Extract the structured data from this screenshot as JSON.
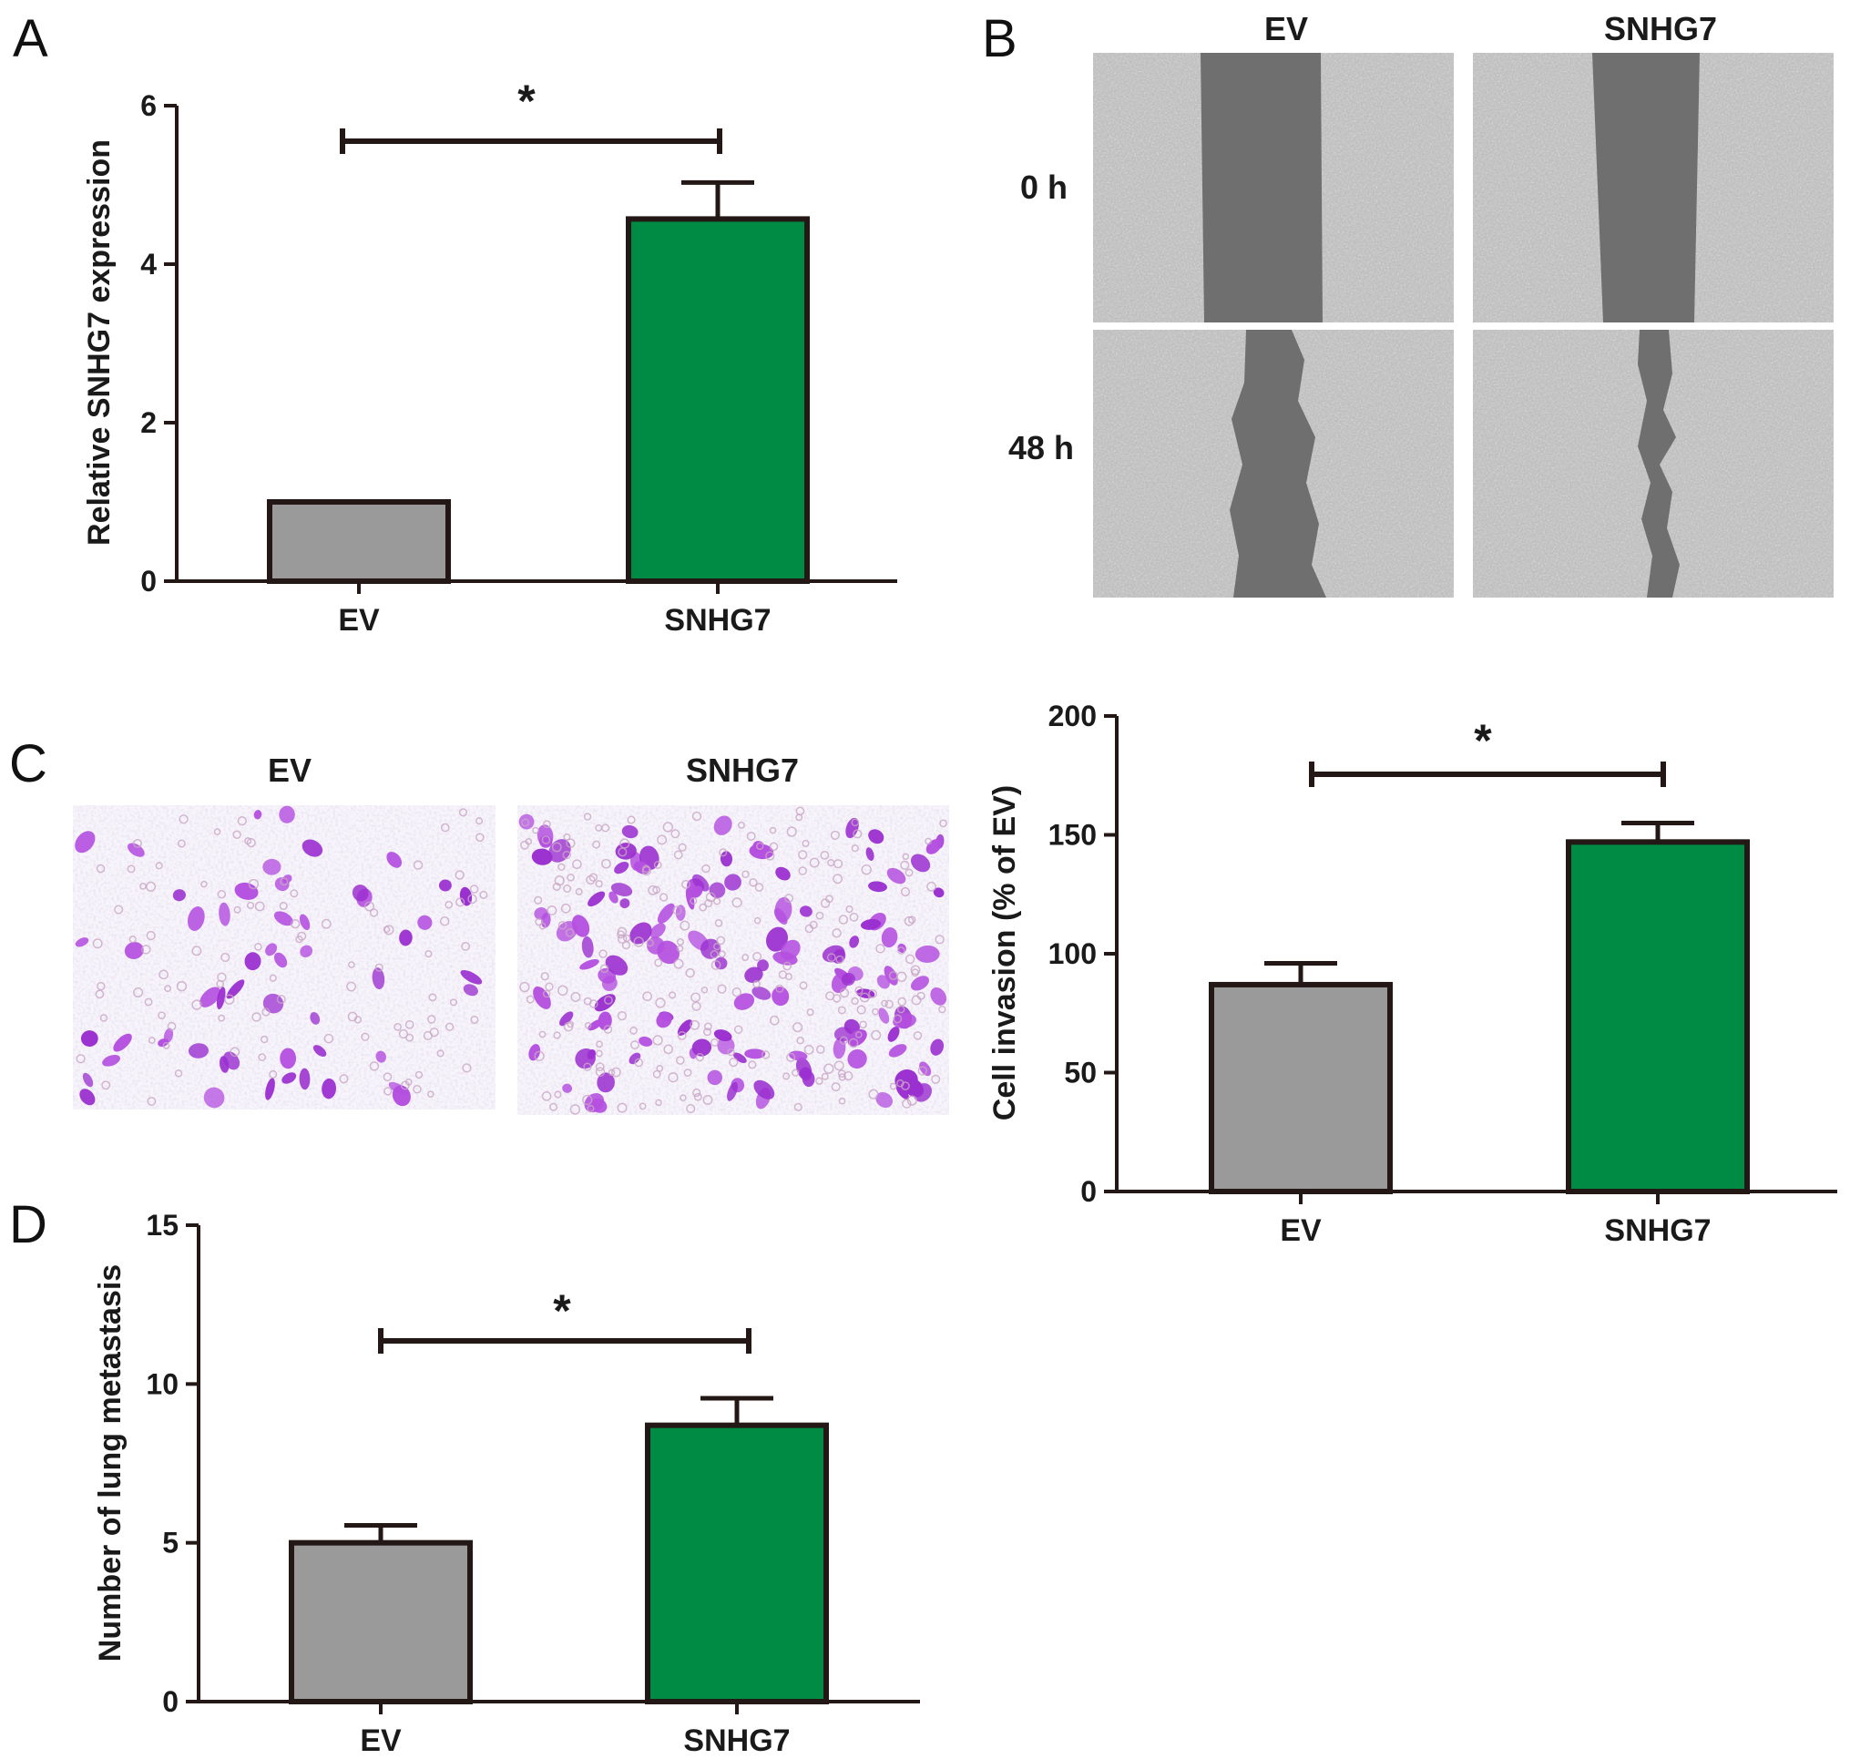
{
  "colors": {
    "ev_bar": "#9a9a9a",
    "snhg7_bar": "#008b45",
    "axis": "#231815",
    "micro_bg": "#b8b8b8",
    "micro_gap": "#6f6f6f",
    "stain": "#9b30d0"
  },
  "panel_a": {
    "letter": "A",
    "significance": "*"
  },
  "panel_b": {
    "letter": "B",
    "col_labels": [
      "EV",
      "SNHG7"
    ],
    "row_labels": [
      "0 h",
      "48 h"
    ]
  },
  "panel_c": {
    "letter": "C",
    "image_labels": [
      "EV",
      "SNHG7"
    ],
    "significance": "*"
  },
  "panel_d": {
    "letter": "D",
    "significance": "*"
  },
  "chart_data": [
    {
      "id": "A",
      "type": "bar",
      "categories": [
        "EV",
        "SNHG7"
      ],
      "values": [
        1.0,
        4.57
      ],
      "errors": [
        0,
        0.46
      ],
      "ylabel": "Relative SNHG7 expression",
      "ylim": [
        0,
        6
      ],
      "yticks": [
        0,
        2,
        4,
        6
      ],
      "bar_colors": [
        "#9a9a9a",
        "#008b45"
      ]
    },
    {
      "id": "C",
      "type": "bar",
      "categories": [
        "EV",
        "SNHG7"
      ],
      "values": [
        87,
        147
      ],
      "errors": [
        9,
        8
      ],
      "ylabel": "Cell invasion (% of EV)",
      "ylim": [
        0,
        200
      ],
      "yticks": [
        0,
        50,
        100,
        150,
        200
      ],
      "bar_colors": [
        "#9a9a9a",
        "#008b45"
      ]
    },
    {
      "id": "D",
      "type": "bar",
      "categories": [
        "EV",
        "SNHG7"
      ],
      "values": [
        5.0,
        8.7
      ],
      "errors": [
        0.55,
        0.85
      ],
      "ylabel": "Number of lung metastasis",
      "ylim": [
        0,
        15
      ],
      "yticks": [
        0,
        5,
        10,
        15
      ],
      "bar_colors": [
        "#9a9a9a",
        "#008b45"
      ]
    }
  ]
}
